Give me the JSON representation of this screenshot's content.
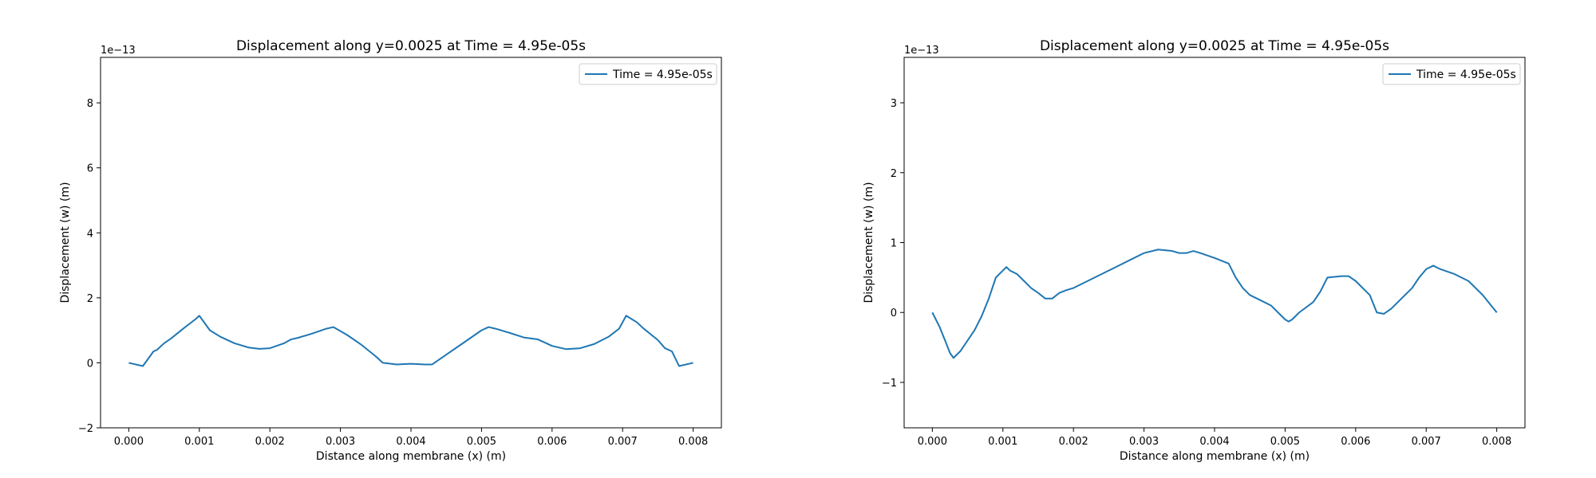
{
  "chart_data": [
    {
      "type": "line",
      "title": "Displacement along y=0.0025 at Time = 4.95e-05s",
      "xlabel": "Distance along membrane (x) (m)",
      "ylabel": "Displacement (w) (m)",
      "y_scale_label": "1e−13",
      "xlim": [
        -0.0004,
        0.0084
      ],
      "ylim": [
        -2,
        9.4
      ],
      "x_ticks": [
        0.0,
        0.001,
        0.002,
        0.003,
        0.004,
        0.005,
        0.006,
        0.007,
        0.008
      ],
      "x_tick_labels": [
        "0.000",
        "0.001",
        "0.002",
        "0.003",
        "0.004",
        "0.005",
        "0.006",
        "0.007",
        "0.008"
      ],
      "y_ticks": [
        -2,
        0,
        2,
        4,
        6,
        8
      ],
      "y_tick_labels": [
        "−2",
        "0",
        "2",
        "4",
        "6",
        "8"
      ],
      "legend_position": "upper right",
      "grid": false,
      "series": [
        {
          "name": "Time = 4.95e-05s",
          "color": "#1f77b4",
          "x": [
            0.0,
            0.0002,
            0.00035,
            0.0004,
            0.0005,
            0.0006,
            0.0008,
            0.00095,
            0.001,
            0.00115,
            0.0013,
            0.0015,
            0.0017,
            0.00185,
            0.002,
            0.0022,
            0.0023,
            0.0024,
            0.0026,
            0.0028,
            0.0029,
            0.0031,
            0.0033,
            0.0035,
            0.0036,
            0.0038,
            0.004,
            0.0042,
            0.0043,
            0.0045,
            0.0047,
            0.0049,
            0.005,
            0.0051,
            0.0052,
            0.0054,
            0.0056,
            0.0058,
            0.006,
            0.0062,
            0.0064,
            0.0066,
            0.0068,
            0.00695,
            0.00705,
            0.0072,
            0.0073,
            0.0075,
            0.0076,
            0.0077,
            0.0078,
            0.008
          ],
          "y": [
            0.0,
            -0.1,
            0.35,
            0.4,
            0.6,
            0.75,
            1.1,
            1.35,
            1.45,
            1.0,
            0.8,
            0.6,
            0.47,
            0.43,
            0.45,
            0.6,
            0.72,
            0.77,
            0.9,
            1.05,
            1.1,
            0.85,
            0.55,
            0.2,
            0.0,
            -0.05,
            -0.03,
            -0.05,
            -0.05,
            0.25,
            0.55,
            0.85,
            1.0,
            1.1,
            1.05,
            0.92,
            0.78,
            0.72,
            0.52,
            0.42,
            0.45,
            0.58,
            0.8,
            1.05,
            1.45,
            1.25,
            1.05,
            0.7,
            0.45,
            0.35,
            -0.1,
            0.0
          ]
        }
      ]
    },
    {
      "type": "line",
      "title": "Displacement along y=0.0025 at Time = 4.95e-05s",
      "xlabel": "Distance along membrane (x) (m)",
      "ylabel": "Displacement (w) (m)",
      "y_scale_label": "1e−13",
      "xlim": [
        -0.0004,
        0.0084
      ],
      "ylim": [
        -1.65,
        3.65
      ],
      "x_ticks": [
        0.0,
        0.001,
        0.002,
        0.003,
        0.004,
        0.005,
        0.006,
        0.007,
        0.008
      ],
      "x_tick_labels": [
        "0.000",
        "0.001",
        "0.002",
        "0.003",
        "0.004",
        "0.005",
        "0.006",
        "0.007",
        "0.008"
      ],
      "y_ticks": [
        -1,
        0,
        1,
        2,
        3
      ],
      "y_tick_labels": [
        "−1",
        "0",
        "1",
        "2",
        "3"
      ],
      "legend_position": "upper right",
      "grid": false,
      "series": [
        {
          "name": "Time = 4.95e-05s",
          "color": "#1f77b4",
          "x": [
            0.0,
            0.0001,
            0.0002,
            0.00025,
            0.0003,
            0.0004,
            0.0005,
            0.0006,
            0.0007,
            0.0008,
            0.0009,
            0.001,
            0.00105,
            0.0011,
            0.0012,
            0.0013,
            0.0014,
            0.0015,
            0.0016,
            0.0017,
            0.0018,
            0.0019,
            0.002,
            0.0022,
            0.0024,
            0.0026,
            0.0028,
            0.003,
            0.0032,
            0.0034,
            0.0035,
            0.0036,
            0.0037,
            0.0038,
            0.004,
            0.0042,
            0.0043,
            0.0044,
            0.0045,
            0.0046,
            0.0048,
            0.0049,
            0.005,
            0.00505,
            0.0051,
            0.0052,
            0.0054,
            0.0055,
            0.0056,
            0.0058,
            0.0059,
            0.006,
            0.0062,
            0.0063,
            0.0064,
            0.0065,
            0.0066,
            0.0068,
            0.0069,
            0.007,
            0.0071,
            0.0072,
            0.0074,
            0.0076,
            0.0078,
            0.008
          ],
          "y": [
            0.0,
            -0.2,
            -0.45,
            -0.58,
            -0.65,
            -0.55,
            -0.4,
            -0.25,
            -0.05,
            0.2,
            0.5,
            0.6,
            0.65,
            0.6,
            0.55,
            0.45,
            0.35,
            0.28,
            0.2,
            0.2,
            0.28,
            0.32,
            0.35,
            0.45,
            0.55,
            0.65,
            0.75,
            0.85,
            0.9,
            0.88,
            0.85,
            0.85,
            0.88,
            0.85,
            0.78,
            0.7,
            0.5,
            0.35,
            0.25,
            0.2,
            0.1,
            0.0,
            -0.1,
            -0.13,
            -0.1,
            0.0,
            0.15,
            0.3,
            0.5,
            0.52,
            0.52,
            0.45,
            0.25,
            0.0,
            -0.02,
            0.05,
            0.15,
            0.35,
            0.5,
            0.62,
            0.67,
            0.62,
            0.55,
            0.45,
            0.25,
            0.0
          ]
        }
      ]
    }
  ]
}
